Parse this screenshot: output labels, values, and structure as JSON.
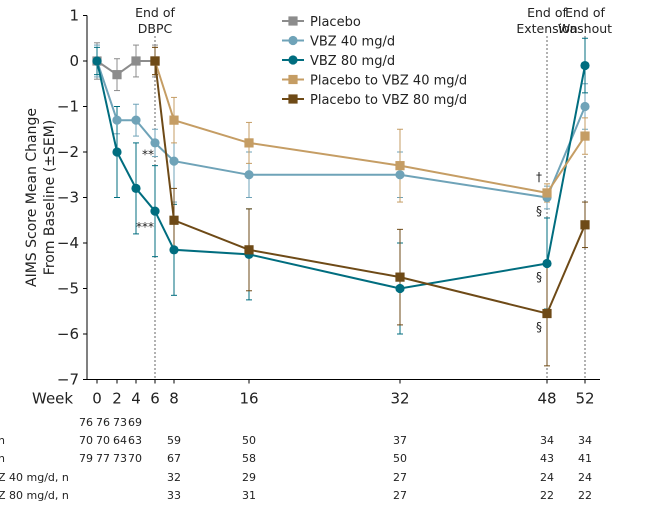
{
  "chart_data": {
    "type": "line",
    "xlabel": "Week",
    "ylabel_line1": "AIMS Score Mean Change",
    "ylabel_line2": "From Baseline (±SEM)",
    "x_ticks": [
      0,
      2,
      4,
      6,
      8,
      16,
      32,
      48,
      52
    ],
    "y_ticks": [
      1,
      0,
      -1,
      -2,
      -3,
      -4,
      -5,
      -6,
      -7
    ],
    "ylim": [
      -7,
      1
    ],
    "grid": false,
    "legend_position": "top-center",
    "vlines": [
      {
        "x": 6,
        "label_line1": "End of",
        "label_line2": "DBPC"
      },
      {
        "x": 48,
        "label_line1": "End of",
        "label_line2": "Extension"
      },
      {
        "x": 52,
        "label_line1": "End of",
        "label_line2": "Washout"
      }
    ],
    "series": [
      {
        "name": "Placebo",
        "color": "#8c8c8c",
        "marker": "square",
        "x": [
          0,
          2,
          4,
          6
        ],
        "y": [
          0,
          -0.3,
          0,
          0
        ],
        "err": [
          0.4,
          0.35,
          0.35,
          0.35
        ]
      },
      {
        "name": "VBZ 40 mg/d",
        "color": "#6fa3b8",
        "marker": "circle",
        "x": [
          0,
          2,
          4,
          6,
          8,
          16,
          32,
          48,
          52
        ],
        "y": [
          0,
          -1.3,
          -1.3,
          -1.8,
          -2.2,
          -2.5,
          -2.5,
          -3.0,
          -1.0
        ],
        "err": [
          0.35,
          0.3,
          0.35,
          0.3,
          0.9,
          0.5,
          0.5,
          0.25,
          0.5
        ]
      },
      {
        "name": "VBZ 80 mg/d",
        "color": "#006d7f",
        "marker": "circle",
        "x": [
          0,
          2,
          4,
          6,
          8,
          16,
          32,
          48,
          52
        ],
        "y": [
          0,
          -2.0,
          -2.8,
          -3.3,
          -4.15,
          -4.25,
          -5.0,
          -4.45,
          -0.1
        ],
        "err": [
          0.3,
          1.0,
          1.0,
          1.0,
          1.0,
          1.0,
          1.0,
          1.0,
          0.6
        ]
      },
      {
        "name": "Placebo to  VBZ 40 mg/d",
        "color": "#c59d64",
        "marker": "square",
        "x": [
          6,
          8,
          16,
          32,
          48,
          52
        ],
        "y": [
          0,
          -1.3,
          -1.8,
          -2.3,
          -2.9,
          -1.65
        ],
        "err": [
          0.3,
          0.5,
          0.45,
          0.8,
          0.2,
          0.4
        ]
      },
      {
        "name": "Placebo to  VBZ 80 mg/d",
        "color": "#6e4a17",
        "marker": "square",
        "x": [
          6,
          8,
          16,
          32,
          48,
          52
        ],
        "y": [
          0,
          -3.5,
          -4.15,
          -4.75,
          -5.55,
          -3.6
        ],
        "err": [
          0.3,
          0.7,
          0.9,
          1.05,
          1.15,
          0.5
        ]
      }
    ],
    "annotations": [
      {
        "x": 6,
        "y": -2.05,
        "text": "**"
      },
      {
        "x": 6,
        "y": -3.65,
        "text": "***"
      },
      {
        "x": 48,
        "y": -2.55,
        "text": "†"
      },
      {
        "x": 48,
        "y": -3.3,
        "text": "§"
      },
      {
        "x": 48,
        "y": -4.75,
        "text": "§"
      },
      {
        "x": 48,
        "y": -5.85,
        "text": "§"
      }
    ],
    "n_table": [
      {
        "label": "",
        "x": [
          2,
          3,
          4,
          6
        ],
        "values": [
          "76",
          "76",
          "73",
          "69"
        ]
      },
      {
        "label": "n",
        "x": [
          2,
          3,
          4,
          6,
          8,
          16,
          32,
          48,
          52
        ],
        "values": [
          "70",
          "70",
          "64",
          "63",
          "59",
          "50",
          "37",
          "34",
          "34"
        ]
      },
      {
        "label": "n",
        "x": [
          2,
          3,
          4,
          6,
          8,
          16,
          32,
          48,
          52
        ],
        "values": [
          "79",
          "77",
          "73",
          "70",
          "67",
          "58",
          "50",
          "43",
          "41"
        ]
      },
      {
        "label": "Z 40 mg/d, n",
        "x": [
          8,
          16,
          32,
          48,
          52
        ],
        "values": [
          "32",
          "29",
          "27",
          "24",
          "24"
        ]
      },
      {
        "label": "Z 80 mg/d, n",
        "x": [
          8,
          16,
          32,
          48,
          52
        ],
        "values": [
          "33",
          "31",
          "27",
          "22",
          "22"
        ]
      }
    ]
  }
}
